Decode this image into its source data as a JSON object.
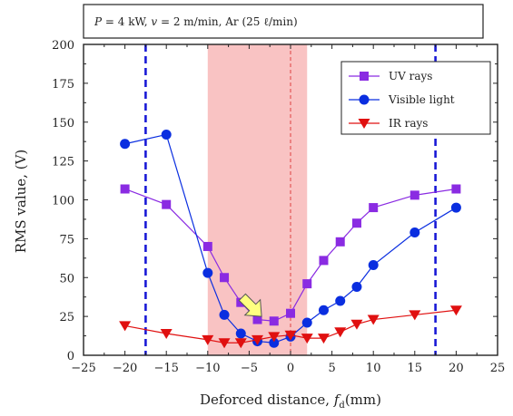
{
  "chart_data": {
    "type": "line",
    "title": "P = 4 kW, v = 2 m/min, Ar (25 ℓ/min)",
    "xlabel": "Deforced distance, fd(mm)",
    "ylabel": "RMS value, (V)",
    "xlim": [
      -25,
      25
    ],
    "ylim": [
      0,
      200
    ],
    "xticks": [
      "−25",
      "−20",
      "−15",
      "−10",
      "−5",
      "0",
      "5",
      "10",
      "15",
      "20",
      "25"
    ],
    "yticks": [
      "0",
      "25",
      "50",
      "75",
      "100",
      "125",
      "150",
      "175",
      "200"
    ],
    "legend_position": "top-right",
    "shaded_region": [
      -10,
      2
    ],
    "vertical_lines": [
      {
        "x": -17.5,
        "style": "dashed",
        "color": "#1a1ad6"
      },
      {
        "x": 17.5,
        "style": "dashed",
        "color": "#1a1ad6"
      },
      {
        "x": 0,
        "style": "dashed",
        "color": "#e04040"
      }
    ],
    "annotation": {
      "type": "arrow",
      "x": -3.5,
      "y": 25,
      "color": "#ffff80"
    },
    "series": [
      {
        "name": "UV rays",
        "color": "#8a2be2",
        "marker": "square",
        "x": [
          -20,
          -15,
          -10,
          -8,
          -6,
          -4,
          -2,
          0,
          2,
          4,
          6,
          8,
          10,
          15,
          20
        ],
        "y": [
          107,
          97,
          70,
          50,
          34,
          23,
          22,
          27,
          46,
          61,
          73,
          85,
          95,
          103,
          107
        ]
      },
      {
        "name": "Visible light",
        "color": "#0a2ee0",
        "marker": "circle",
        "x": [
          -20,
          -15,
          -10,
          -8,
          -6,
          -4,
          -2,
          0,
          2,
          4,
          6,
          8,
          10,
          15,
          20
        ],
        "y": [
          136,
          142,
          53,
          26,
          14,
          9,
          8,
          12,
          21,
          29,
          35,
          44,
          58,
          79,
          95
        ]
      },
      {
        "name": "IR rays",
        "color": "#e01010",
        "marker": "triangle-down",
        "x": [
          -20,
          -15,
          -10,
          -8,
          -6,
          -4,
          -2,
          0,
          2,
          4,
          6,
          8,
          10,
          15,
          20
        ],
        "y": [
          19,
          14,
          10,
          8,
          8,
          10,
          12,
          13,
          11,
          11,
          15,
          20,
          23,
          26,
          29
        ]
      }
    ]
  }
}
